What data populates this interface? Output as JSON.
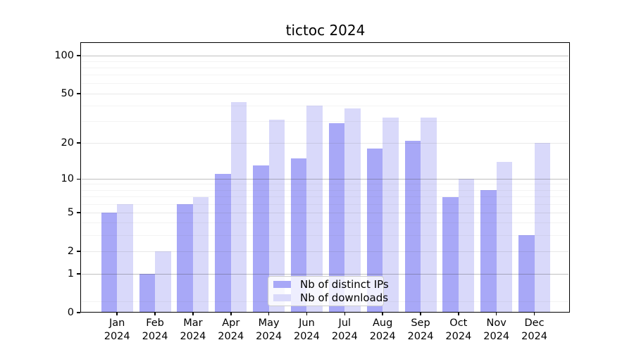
{
  "chart_data": {
    "type": "bar",
    "title": "tictoc 2024",
    "categories": [
      "Jan 2024",
      "Feb 2024",
      "Mar 2024",
      "Apr 2024",
      "May 2024",
      "Jun 2024",
      "Jul 2024",
      "Aug 2024",
      "Sep 2024",
      "Oct 2024",
      "Nov 2024",
      "Dec 2024"
    ],
    "series": [
      {
        "name": "Nb of distinct IPs",
        "color": "#a8a8f7",
        "values": [
          5,
          1,
          6,
          11,
          13,
          15,
          29,
          18,
          21,
          7,
          8,
          3
        ]
      },
      {
        "name": "Nb of downloads",
        "color": "#d9d9fa",
        "values": [
          6,
          2,
          7,
          43,
          31,
          40,
          38,
          32,
          32,
          10,
          14,
          20
        ]
      }
    ],
    "xlabel": "",
    "ylabel": "",
    "yscale": "log1p",
    "ylim": [
      0,
      127
    ],
    "y_ticks": [
      0,
      1,
      2,
      5,
      10,
      20,
      50,
      100
    ],
    "gridlines": {
      "strong": [
        1,
        10,
        100
      ],
      "mid": [
        2,
        5,
        20,
        50
      ],
      "minor": [
        0.22,
        3,
        4,
        6,
        7,
        8,
        9,
        30,
        40,
        60,
        70,
        80,
        90
      ]
    },
    "grid": true,
    "legend_position": "lower center"
  }
}
